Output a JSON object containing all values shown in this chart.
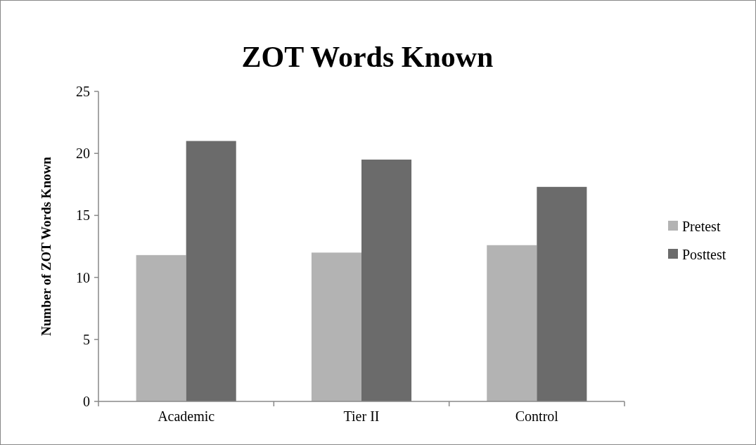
{
  "chart_data": {
    "type": "bar",
    "title": "ZOT Words Known",
    "ylabel": "Number of ZOT Words Known",
    "categories": [
      "Academic",
      "Tier II",
      "Control"
    ],
    "series": [
      {
        "name": "Pretest",
        "color": "#b3b3b3",
        "values": [
          11.8,
          12.0,
          12.6
        ]
      },
      {
        "name": "Posttest",
        "color": "#6b6b6b",
        "values": [
          21.0,
          19.5,
          17.3
        ]
      }
    ],
    "ylim": [
      0,
      25
    ],
    "yticks": [
      0,
      5,
      10,
      15,
      20,
      25
    ],
    "grid": false,
    "legend": "right"
  }
}
